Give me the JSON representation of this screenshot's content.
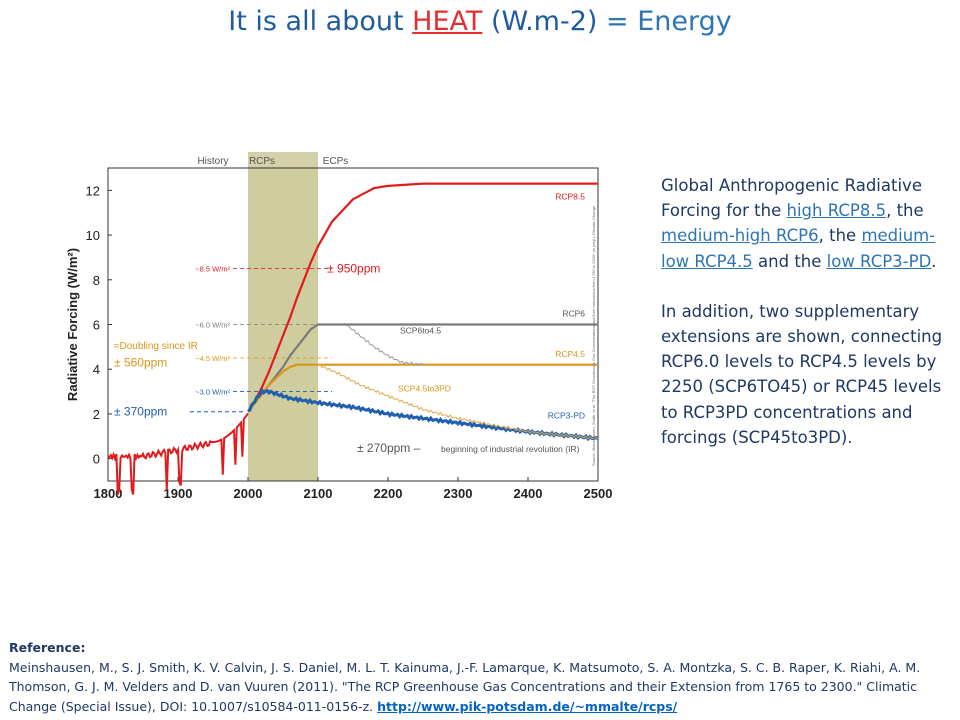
{
  "title": {
    "part1": "It is all about ",
    "heat": "HEAT",
    "part2": " (W.m-2)",
    "part3": " = Energy"
  },
  "description": {
    "p1_pre": "Global Anthropogenic Radiative Forcing for the ",
    "link1": "high RCP8.5",
    "p1_mid1": ", the ",
    "link2": "medium-high RCP6",
    "p1_mid2": ", the ",
    "link3": "medium-low RCP4.5",
    "p1_mid3": " and the ",
    "link4": "low RCP3-PD",
    "p1_end": ".",
    "p2": "In addition, two supplementary extensions are shown, connecting RCP6.0 levels to RCP4.5 levels by 2250 (SCP6TO45) or RCP45 levels to RCP3PD concentrations and forcings (SCP45to3PD)."
  },
  "reference": {
    "heading": "Reference:",
    "text": "Meinshausen, M., S. J. Smith, K. V. Calvin, J. S. Daniel, M. L. T. Kainuma, J.-F. Lamarque, K. Matsumoto, S. A. Montzka, S. C. B. Raper, K. Riahi, A. M. Thomson, G. J. M. Velders and D. van Vuuren (2011). \"The RCP Greenhouse Gas Concentrations and their Extension from 1765 to 2300.\" Climatic Change (Special Issue), DOI: 10.1007/s10584-011-0156-z. ",
    "url": "http://www.pik-potsdam.de/~mmalte/rcps/"
  },
  "chart_data": {
    "type": "line",
    "ylabel": "Radiative Forcing (W/m²)",
    "xlim": [
      1800,
      2500
    ],
    "ylim": [
      -1,
      13
    ],
    "xticks": [
      "1800",
      "1900",
      "2000",
      "2100",
      "2200",
      "2300",
      "2400",
      "2500"
    ],
    "yticks": [
      "0",
      "2",
      "4",
      "6",
      "8",
      "10",
      "12"
    ],
    "periods": [
      {
        "label": "History",
        "x": 1950
      },
      {
        "label": "RCPs",
        "x": 2020
      },
      {
        "label": "ECPs",
        "x": 2125
      }
    ],
    "shaded_region": [
      2000,
      2100
    ],
    "series": [
      {
        "name": "RCP8.5",
        "color": "#e31a1c",
        "x": [
          2000,
          2010,
          2020,
          2030,
          2040,
          2050,
          2060,
          2070,
          2080,
          2090,
          2100,
          2120,
          2150,
          2180,
          2200,
          2250,
          2300,
          2400,
          2500
        ],
        "y": [
          2.1,
          2.6,
          3.2,
          3.9,
          4.7,
          5.5,
          6.3,
          7.2,
          8.0,
          8.8,
          9.5,
          10.6,
          11.6,
          12.1,
          12.2,
          12.3,
          12.3,
          12.3,
          12.3
        ]
      },
      {
        "name": "RCP6",
        "color": "#7a7a7a",
        "x": [
          2000,
          2010,
          2020,
          2030,
          2040,
          2050,
          2060,
          2070,
          2080,
          2090,
          2100,
          2120,
          2150,
          2200,
          2300,
          2400,
          2500
        ],
        "y": [
          2.1,
          2.5,
          2.9,
          3.3,
          3.7,
          4.1,
          4.6,
          5.0,
          5.4,
          5.8,
          6.0,
          6.0,
          6.0,
          6.0,
          6.0,
          6.0,
          6.0
        ]
      },
      {
        "name": "RCP4.5",
        "color": "#d9961a",
        "x": [
          2000,
          2010,
          2020,
          2030,
          2040,
          2050,
          2060,
          2070,
          2080,
          2090,
          2100,
          2150,
          2200,
          2300,
          2400,
          2500
        ],
        "y": [
          2.1,
          2.5,
          2.9,
          3.3,
          3.6,
          3.9,
          4.1,
          4.2,
          4.2,
          4.2,
          4.2,
          4.2,
          4.2,
          4.2,
          4.2,
          4.2
        ]
      },
      {
        "name": "RCP3-PD",
        "color": "#1f5fae",
        "x": [
          2000,
          2010,
          2020,
          2030,
          2040,
          2050,
          2060,
          2080,
          2100,
          2150,
          2200,
          2250,
          2300,
          2400,
          2500
        ],
        "y": [
          2.1,
          2.6,
          3.0,
          3.0,
          2.9,
          2.8,
          2.7,
          2.6,
          2.5,
          2.3,
          2.0,
          1.8,
          1.6,
          1.2,
          0.9
        ]
      },
      {
        "name": "SCP6to4.5",
        "color": "#9a9a9a",
        "x": [
          2140,
          2160,
          2180,
          2200,
          2220,
          2250
        ],
        "y": [
          6.0,
          5.5,
          5.0,
          4.6,
          4.3,
          4.2
        ]
      },
      {
        "name": "SCP4.5to3PD",
        "color": "#e0a84a",
        "x": [
          2100,
          2130,
          2160,
          2200,
          2250,
          2300,
          2400,
          2500
        ],
        "y": [
          4.2,
          3.8,
          3.3,
          2.8,
          2.2,
          1.8,
          1.2,
          0.9
        ]
      }
    ],
    "history_series": {
      "name": "History",
      "color": "#e31a1c"
    },
    "levels": [
      {
        "label": "~8.5 W/m²",
        "y": 8.5,
        "color": "#e31a1c"
      },
      {
        "label": "~6.0 W/m²",
        "y": 6.0,
        "color": "#7a7a7a"
      },
      {
        "label": "~4.5 W/m²",
        "y": 4.5,
        "color": "#d9961a"
      },
      {
        "label": "~3.0 W/m²",
        "y": 3.0,
        "color": "#1f5fae"
      }
    ],
    "annotations": {
      "ppm950": "± 950ppm",
      "doubling": "≈Doubling since IR",
      "ppm560": "± 560ppm",
      "ppm370": "± 370ppm",
      "ppm270": "± 270ppm –",
      "ppm270_note": "beginning of industrial revolution (IR)",
      "source_note": "Source: Meinshausen, Smith, et al. \"The RCP Greenhouse Gas Concentrations and their extensions from 1765 to 2300\" (in prep.) Climatic Change"
    },
    "series_labels": [
      {
        "text": "RCP8.5",
        "color": "#e31a1c"
      },
      {
        "text": "RCP6",
        "color": "#555555"
      },
      {
        "text": "SCP6to4.5",
        "color": "#555555"
      },
      {
        "text": "RCP4.5",
        "color": "#d9961a"
      },
      {
        "text": "SCP4.5to3PD",
        "color": "#d9961a"
      },
      {
        "text": "RCP3-PD",
        "color": "#1f5fae"
      }
    ]
  }
}
